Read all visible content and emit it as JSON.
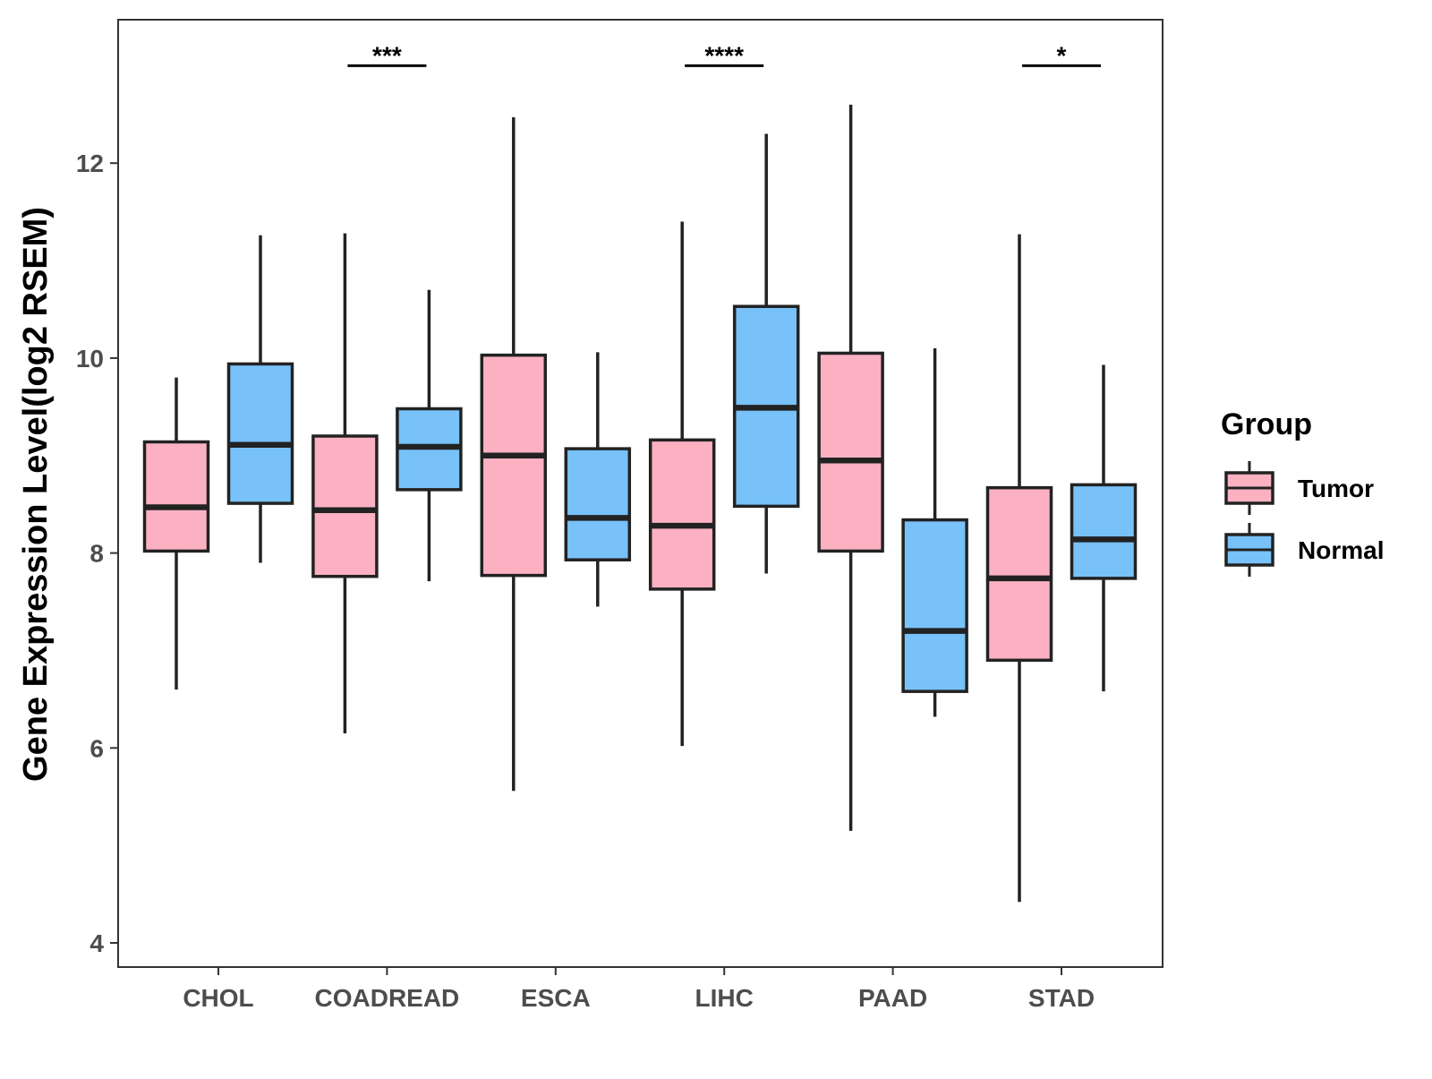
{
  "chart_data": {
    "type": "boxplot",
    "title": "",
    "xlabel": "",
    "ylabel": "Gene Expression Level(log2 RSEM)",
    "ylim": [
      3.7,
      13.3
    ],
    "yticks": [
      4,
      6,
      8,
      10,
      12
    ],
    "categories": [
      "CHOL",
      "COADREAD",
      "ESCA",
      "LIHC",
      "PAAD",
      "STAD"
    ],
    "legend": {
      "title": "Group",
      "position": "right"
    },
    "series": [
      {
        "name": "Tumor",
        "color": "#FBB1C2",
        "boxes": [
          {
            "min": 6.6,
            "q1": 8.02,
            "median": 8.47,
            "q3": 9.14,
            "max": 9.8
          },
          {
            "min": 6.15,
            "q1": 7.76,
            "median": 8.44,
            "q3": 9.2,
            "max": 11.28
          },
          {
            "min": 5.56,
            "q1": 7.77,
            "median": 9.0,
            "q3": 10.03,
            "max": 12.47
          },
          {
            "min": 6.02,
            "q1": 7.63,
            "median": 8.28,
            "q3": 9.16,
            "max": 11.4
          },
          {
            "min": 5.15,
            "q1": 8.02,
            "median": 8.95,
            "q3": 10.05,
            "max": 12.6
          },
          {
            "min": 4.42,
            "q1": 6.9,
            "median": 7.74,
            "q3": 8.67,
            "max": 11.27
          }
        ]
      },
      {
        "name": "Normal",
        "color": "#78C1F9",
        "boxes": [
          {
            "min": 7.9,
            "q1": 8.51,
            "median": 9.11,
            "q3": 9.94,
            "max": 11.26
          },
          {
            "min": 7.71,
            "q1": 8.65,
            "median": 9.09,
            "q3": 9.48,
            "max": 10.7
          },
          {
            "min": 7.45,
            "q1": 7.93,
            "median": 8.36,
            "q3": 9.07,
            "max": 10.06
          },
          {
            "min": 7.79,
            "q1": 8.48,
            "median": 9.49,
            "q3": 10.53,
            "max": 12.3
          },
          {
            "min": 6.32,
            "q1": 6.58,
            "median": 7.2,
            "q3": 8.34,
            "max": 10.1
          },
          {
            "min": 6.58,
            "q1": 7.74,
            "median": 8.14,
            "q3": 8.7,
            "max": 9.93
          }
        ]
      }
    ],
    "significance": [
      {
        "category": "COADREAD",
        "label": "***"
      },
      {
        "category": "LIHC",
        "label": "****"
      },
      {
        "category": "STAD",
        "label": "*"
      }
    ],
    "significance_y": 13.0
  }
}
